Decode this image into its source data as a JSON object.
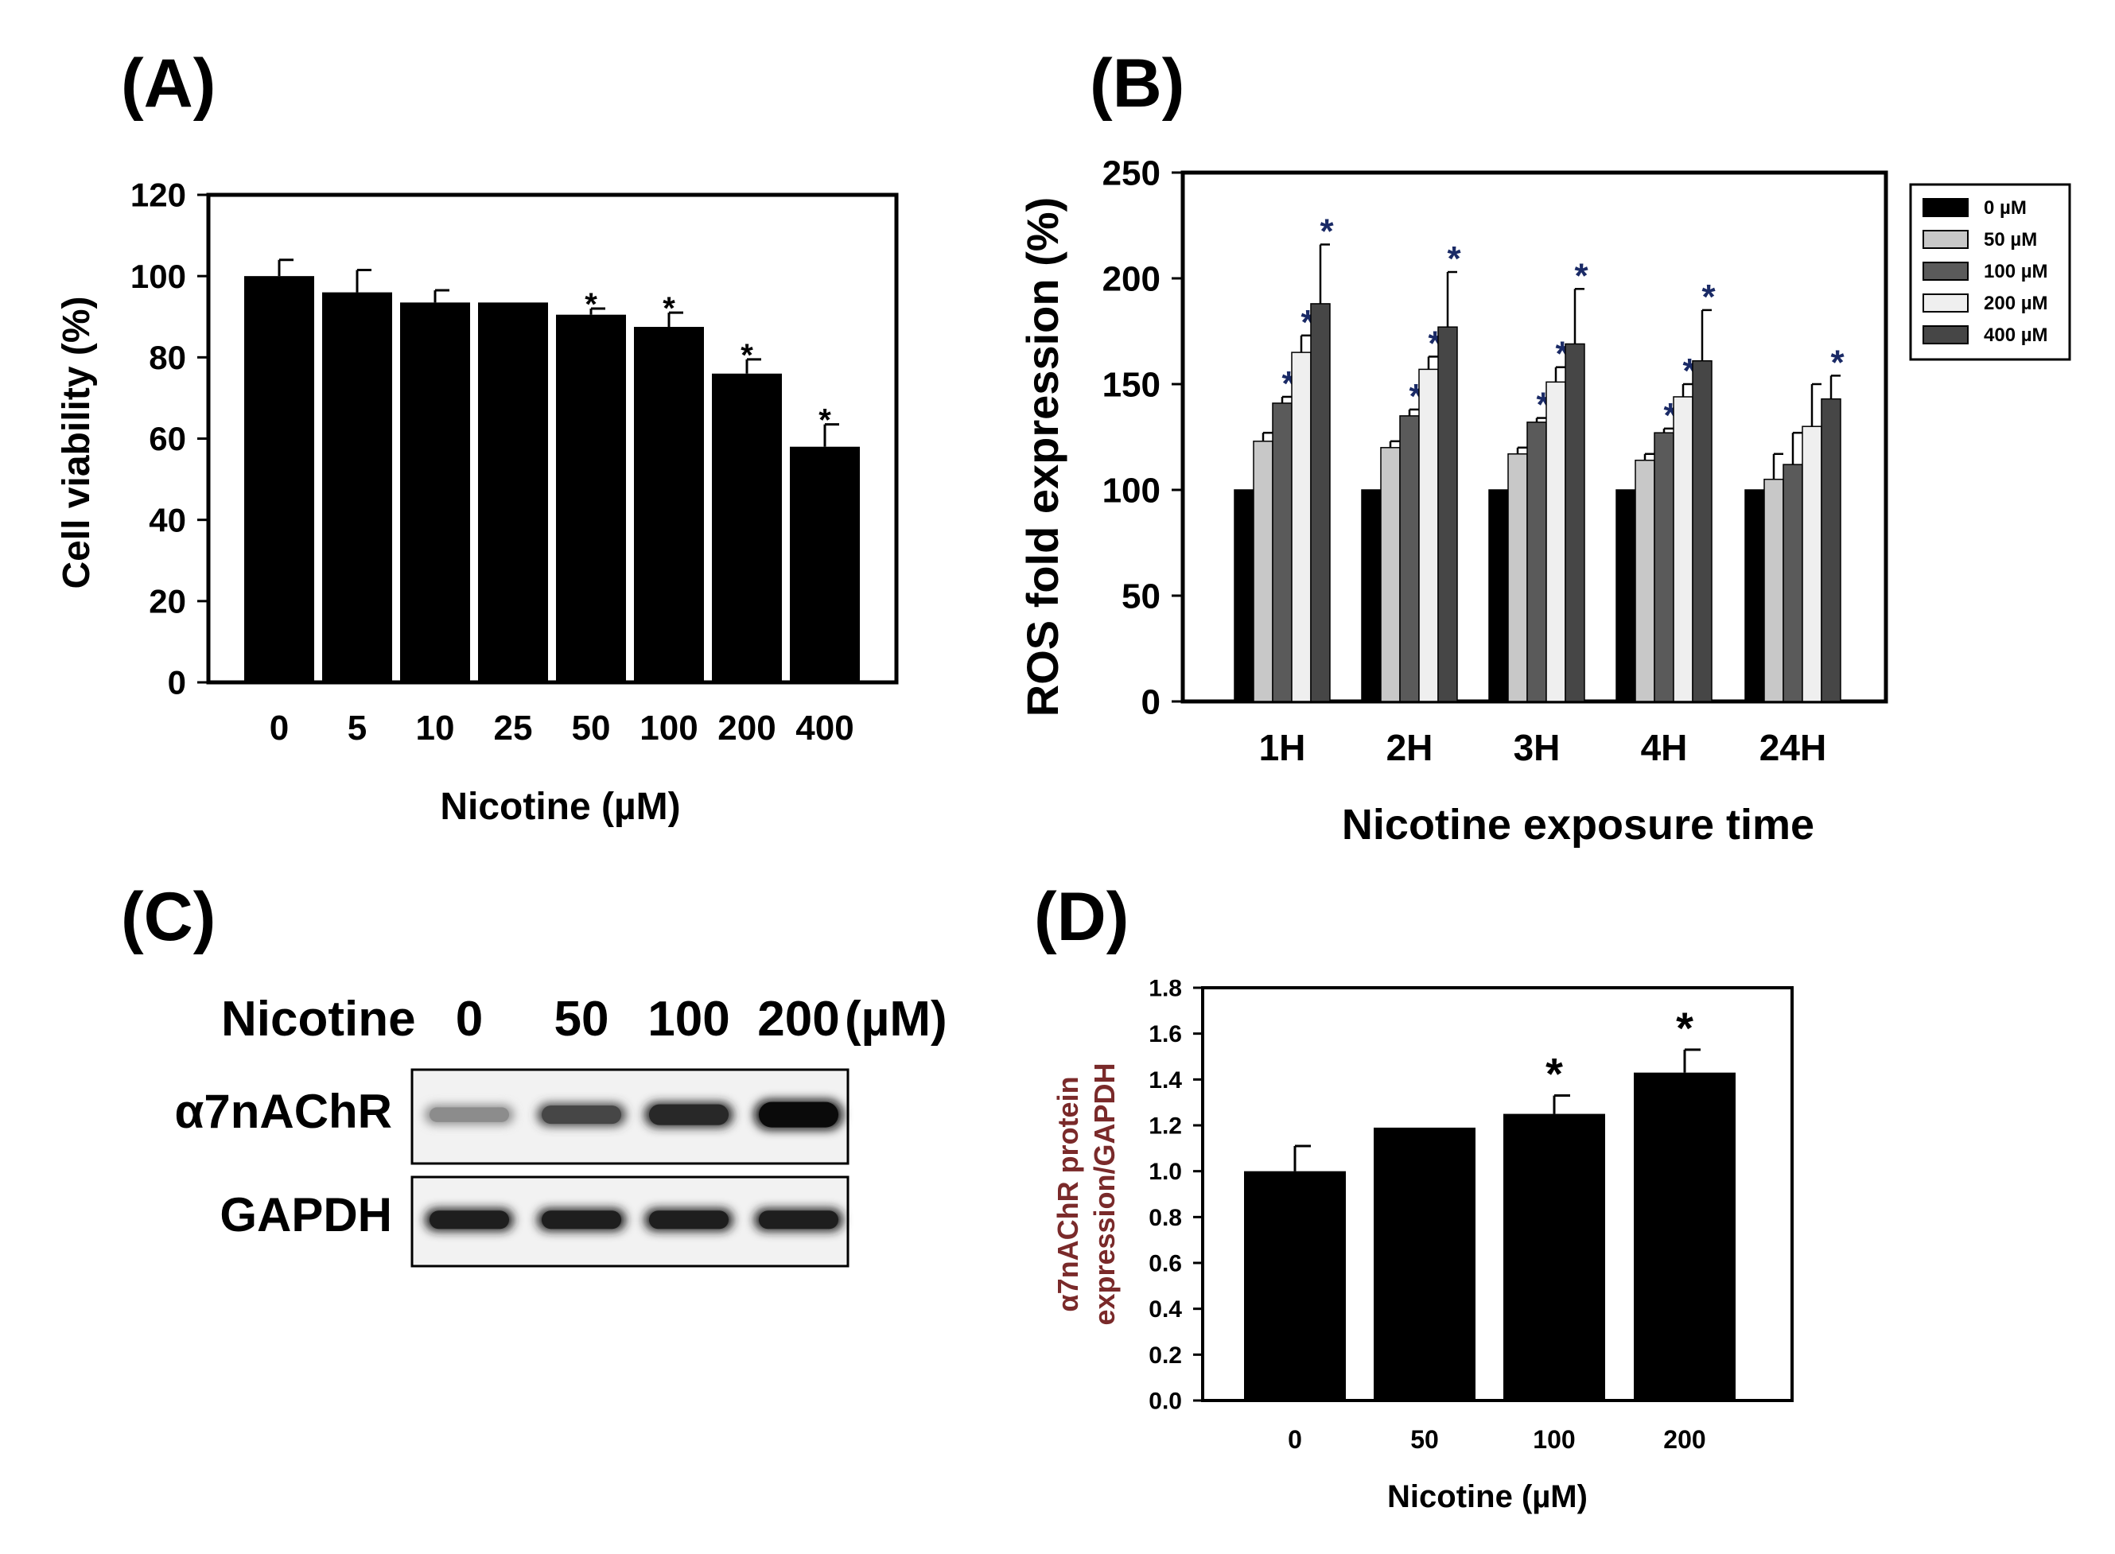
{
  "panels": {
    "a": "(A)",
    "b": "(B)",
    "c": "(C)",
    "d": "(D)"
  },
  "chart_data": [
    {
      "id": "A",
      "type": "bar",
      "title": "",
      "xlabel": "Nicotine (µM)",
      "ylabel": "Cell viability (%)",
      "categories": [
        "0",
        "5",
        "10",
        "25",
        "50",
        "100",
        "200",
        "400"
      ],
      "values": [
        100,
        96,
        93.5,
        93.5,
        90.5,
        87.5,
        76,
        58
      ],
      "errors": [
        4,
        5.5,
        3,
        0,
        1.5,
        3.5,
        3.5,
        5.5
      ],
      "significance": [
        "",
        "",
        "",
        "",
        "*",
        "*",
        "*",
        "*"
      ],
      "ylim": [
        0,
        120
      ],
      "yticks": [
        "0",
        "20",
        "40",
        "60",
        "80",
        "100",
        "120"
      ],
      "bar_color": "#000000"
    },
    {
      "id": "B",
      "type": "bar",
      "title": "",
      "xlabel": "Nicotine exposure time",
      "ylabel": "ROS fold expression (%)",
      "categories": [
        "1H",
        "2H",
        "3H",
        "4H",
        "24H"
      ],
      "series": [
        {
          "name": "0 µM",
          "color": "#000000",
          "values": [
            100,
            100,
            100,
            100,
            100
          ],
          "errors": [
            0,
            0,
            0,
            0,
            0
          ],
          "significance": [
            "",
            "",
            "",
            "",
            ""
          ]
        },
        {
          "name": "50 µM",
          "color": "#c8c8c8",
          "values": [
            123,
            120,
            117,
            114,
            105
          ],
          "errors": [
            4,
            3,
            3,
            3,
            12
          ],
          "significance": [
            "",
            "",
            "",
            "",
            ""
          ]
        },
        {
          "name": "100 µM",
          "color": "#5a5a5a",
          "values": [
            141,
            135,
            132,
            127,
            112
          ],
          "errors": [
            3,
            3,
            2,
            2,
            15
          ],
          "significance": [
            "*",
            "*",
            "*",
            "*",
            ""
          ]
        },
        {
          "name": "200 µM",
          "color": "#efefef",
          "values": [
            165,
            157,
            151,
            144,
            130
          ],
          "errors": [
            8,
            6,
            7,
            6,
            20
          ],
          "significance": [
            "*",
            "*",
            "*",
            "*",
            ""
          ]
        },
        {
          "name": "400 µM",
          "color": "#464646",
          "values": [
            188,
            177,
            169,
            161,
            143
          ],
          "errors": [
            28,
            26,
            26,
            24,
            11
          ],
          "significance": [
            "*",
            "*",
            "*",
            "*",
            "*"
          ]
        }
      ],
      "ylim": [
        0,
        250
      ],
      "yticks": [
        "0",
        "50",
        "100",
        "150",
        "200",
        "250"
      ],
      "legend_position": "outside-right"
    },
    {
      "id": "D",
      "type": "bar",
      "title": "",
      "xlabel": "Nicotine (µM)",
      "ylabel": [
        "α7nAChR protein",
        "expression/GAPDH"
      ],
      "ylabel_color": "#7a2a2a",
      "categories": [
        "0",
        "50",
        "100",
        "200"
      ],
      "values": [
        1.0,
        1.19,
        1.25,
        1.43
      ],
      "errors": [
        0.11,
        0,
        0.08,
        0.1
      ],
      "significance": [
        "",
        "",
        "*",
        "*"
      ],
      "ylim": [
        0,
        1.8
      ],
      "yticks": [
        "0.0",
        "0.2",
        "0.4",
        "0.6",
        "0.8",
        "1.0",
        "1.2",
        "1.4",
        "1.6",
        "1.8"
      ],
      "bar_color": "#000000"
    }
  ],
  "western_blot": {
    "header_label": "Nicotine",
    "lanes": [
      "0",
      "50",
      "100",
      "200"
    ],
    "unit": "(µM)",
    "rows": [
      {
        "label": "α7nAChR",
        "band_intensity": [
          0.35,
          0.7,
          0.85,
          1.0
        ],
        "band_thickness": [
          0.35,
          0.5,
          0.6,
          0.8
        ]
      },
      {
        "label": "GAPDH",
        "band_intensity": [
          0.9,
          0.9,
          0.9,
          0.9
        ],
        "band_thickness": [
          0.5,
          0.5,
          0.5,
          0.5
        ]
      }
    ]
  }
}
